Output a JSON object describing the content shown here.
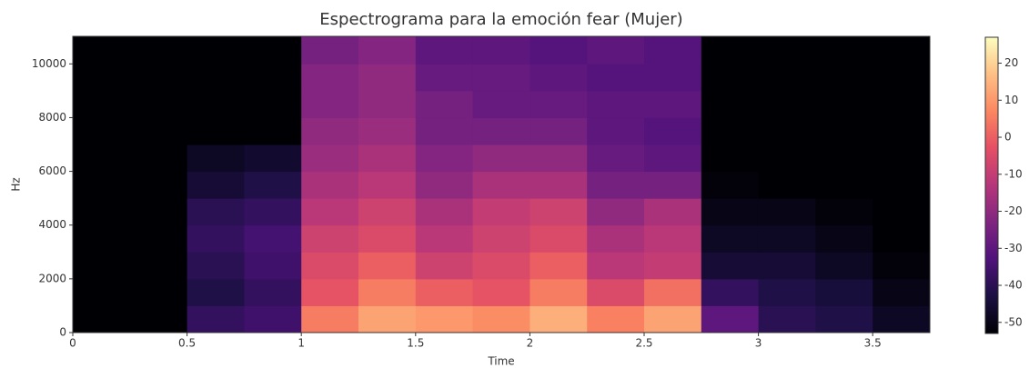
{
  "chart_data": {
    "type": "heatmap",
    "title": "Espectrograma para la emoción fear (Mujer)",
    "x_label": "Time",
    "y_label": "Hz",
    "x": [
      0,
      0.25,
      0.5,
      0.75,
      1.0,
      1.25,
      1.5,
      1.75,
      2.0,
      2.25,
      2.5,
      2.75,
      3.0,
      3.25,
      3.5
    ],
    "y": [
      0,
      1000,
      2000,
      3000,
      4000,
      5000,
      6000,
      7000,
      8000,
      9000,
      10000
    ],
    "z": [
      [
        -53,
        -53,
        -38,
        -36,
        5,
        12,
        10,
        8,
        14,
        6,
        12,
        -30,
        -40,
        -42,
        -48
      ],
      [
        -53,
        -53,
        -42,
        -38,
        -2,
        5,
        0,
        -2,
        5,
        -5,
        3,
        -38,
        -42,
        -44,
        -50
      ],
      [
        -53,
        -53,
        -40,
        -36,
        -5,
        0,
        -8,
        -5,
        0,
        -12,
        -10,
        -45,
        -45,
        -48,
        -52
      ],
      [
        -53,
        -53,
        -38,
        -35,
        -8,
        -5,
        -12,
        -8,
        -5,
        -15,
        -12,
        -48,
        -48,
        -50,
        -53
      ],
      [
        -53,
        -53,
        -40,
        -38,
        -12,
        -8,
        -15,
        -10,
        -8,
        -20,
        -15,
        -50,
        -50,
        -52,
        -53
      ],
      [
        -53,
        -53,
        -45,
        -42,
        -15,
        -12,
        -20,
        -15,
        -15,
        -25,
        -25,
        -52,
        -53,
        -53,
        -53
      ],
      [
        -53,
        -53,
        -48,
        -46,
        -18,
        -15,
        -22,
        -20,
        -20,
        -28,
        -30,
        -53,
        -53,
        -53,
        -53
      ],
      [
        -53,
        -53,
        -53,
        -53,
        -20,
        -18,
        -25,
        -25,
        -25,
        -30,
        -32,
        -53,
        -53,
        -53,
        -53
      ],
      [
        -53,
        -53,
        -53,
        -53,
        -22,
        -20,
        -25,
        -28,
        -28,
        -30,
        -30,
        -53,
        -53,
        -53,
        -53
      ],
      [
        -53,
        -53,
        -53,
        -53,
        -22,
        -20,
        -28,
        -28,
        -30,
        -32,
        -32,
        -53,
        -53,
        -53,
        -53
      ],
      [
        -53,
        -53,
        -53,
        -53,
        -25,
        -22,
        -30,
        -30,
        -32,
        -30,
        -32,
        -53,
        -53,
        -53,
        -53
      ]
    ],
    "xlim": [
      0,
      3.75
    ],
    "ylim": [
      0,
      11025
    ],
    "xticks": [
      0,
      0.5,
      1,
      1.5,
      2,
      2.5,
      3,
      3.5
    ],
    "yticks": [
      0,
      2000,
      4000,
      6000,
      8000,
      10000
    ],
    "clim": [
      -53,
      27
    ],
    "cticks": [
      -50,
      -40,
      -30,
      -20,
      -10,
      0,
      10,
      20
    ],
    "colormap": "magma"
  }
}
